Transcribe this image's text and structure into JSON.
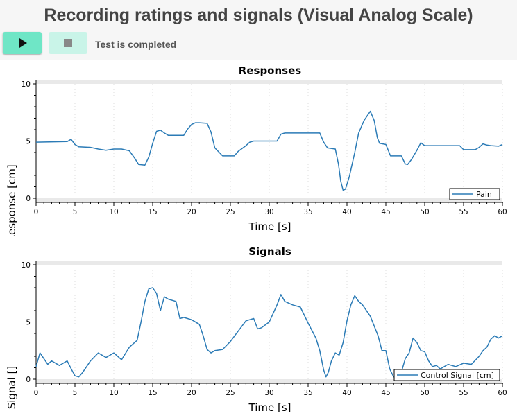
{
  "header": {
    "title": "Recording ratings and signals (Visual Analog Scale)",
    "status": "Test is completed"
  },
  "toolbar": {
    "play_icon": "play-icon",
    "stop_icon": "stop-icon"
  },
  "colors": {
    "series": "#2b7bb6",
    "play_button": "#6fe6c6",
    "stop_button": "#c9f4e8",
    "band": "#e9e9e9"
  },
  "chart_data": [
    {
      "type": "line",
      "title": "Responses",
      "xlabel": "Time [s]",
      "ylabel": "Response [cm]",
      "xlim": [
        0,
        60
      ],
      "ylim": [
        0,
        10
      ],
      "xticks": [
        "0",
        "5",
        "10",
        "15",
        "20",
        "25",
        "30",
        "35",
        "40",
        "45",
        "50",
        "55",
        "60"
      ],
      "yticks": [
        "0",
        "5",
        "10"
      ],
      "legend": "bottom-right",
      "series": [
        {
          "name": "Pain",
          "points": [
            [
              0,
              4.9
            ],
            [
              4,
              4.95
            ],
            [
              4.5,
              5.15
            ],
            [
              5,
              4.7
            ],
            [
              5.5,
              4.5
            ],
            [
              7,
              4.45
            ],
            [
              8,
              4.3
            ],
            [
              9,
              4.2
            ],
            [
              10,
              4.3
            ],
            [
              11,
              4.3
            ],
            [
              12,
              4.15
            ],
            [
              12.7,
              3.5
            ],
            [
              13.2,
              2.95
            ],
            [
              14,
              2.9
            ],
            [
              14.5,
              3.6
            ],
            [
              15,
              4.8
            ],
            [
              15.5,
              5.85
            ],
            [
              16,
              5.95
            ],
            [
              16.5,
              5.7
            ],
            [
              17,
              5.5
            ],
            [
              19,
              5.5
            ],
            [
              19.5,
              6.05
            ],
            [
              20,
              6.45
            ],
            [
              20.5,
              6.6
            ],
            [
              21,
              6.6
            ],
            [
              22,
              6.55
            ],
            [
              22.5,
              5.8
            ],
            [
              23,
              4.4
            ],
            [
              24,
              3.7
            ],
            [
              25.5,
              3.7
            ],
            [
              26,
              4.1
            ],
            [
              27,
              4.6
            ],
            [
              27.5,
              4.9
            ],
            [
              28,
              5.0
            ],
            [
              31,
              5.0
            ],
            [
              31.5,
              5.6
            ],
            [
              32,
              5.7
            ],
            [
              36.5,
              5.7
            ],
            [
              37,
              4.9
            ],
            [
              37.5,
              4.4
            ],
            [
              38.5,
              4.3
            ],
            [
              38.9,
              3.0
            ],
            [
              39.2,
              1.5
            ],
            [
              39.5,
              0.7
            ],
            [
              39.8,
              0.8
            ],
            [
              40.3,
              1.9
            ],
            [
              41,
              4.0
            ],
            [
              41.5,
              5.7
            ],
            [
              42.2,
              6.8
            ],
            [
              43,
              7.6
            ],
            [
              43.5,
              6.8
            ],
            [
              43.9,
              5.3
            ],
            [
              44.2,
              4.8
            ],
            [
              45,
              4.7
            ],
            [
              45.3,
              4.2
            ],
            [
              45.6,
              3.7
            ],
            [
              47,
              3.7
            ],
            [
              47.5,
              3.0
            ],
            [
              47.8,
              2.95
            ],
            [
              48.3,
              3.4
            ],
            [
              49,
              4.2
            ],
            [
              49.5,
              4.85
            ],
            [
              50,
              4.6
            ],
            [
              54.5,
              4.6
            ],
            [
              55,
              4.25
            ],
            [
              56.5,
              4.25
            ],
            [
              57,
              4.45
            ],
            [
              57.5,
              4.75
            ],
            [
              58,
              4.65
            ],
            [
              58.5,
              4.6
            ],
            [
              59.5,
              4.55
            ],
            [
              60,
              4.7
            ]
          ]
        }
      ]
    },
    {
      "type": "line",
      "title": "Signals",
      "xlabel": "Time [s]",
      "ylabel": "Signal []",
      "xlim": [
        0,
        60
      ],
      "ylim": [
        0,
        10
      ],
      "xticks": [
        "0",
        "5",
        "10",
        "15",
        "20",
        "25",
        "30",
        "35",
        "40",
        "45",
        "50",
        "55",
        "60"
      ],
      "yticks": [
        "0",
        "5",
        "10"
      ],
      "legend": "bottom-right",
      "series": [
        {
          "name": "Control Signal [cm]",
          "points": [
            [
              0,
              1.1
            ],
            [
              0.5,
              2.3
            ],
            [
              1,
              1.8
            ],
            [
              1.5,
              1.3
            ],
            [
              2,
              1.6
            ],
            [
              3,
              1.2
            ],
            [
              4,
              1.6
            ],
            [
              4.6,
              0.8
            ],
            [
              5,
              0.3
            ],
            [
              5.5,
              0.2
            ],
            [
              6,
              0.6
            ],
            [
              7,
              1.6
            ],
            [
              8,
              2.3
            ],
            [
              9,
              1.9
            ],
            [
              10,
              2.3
            ],
            [
              11,
              1.7
            ],
            [
              12,
              2.8
            ],
            [
              13,
              3.4
            ],
            [
              13.5,
              5.0
            ],
            [
              14,
              6.8
            ],
            [
              14.5,
              7.9
            ],
            [
              15,
              8.0
            ],
            [
              15.5,
              7.5
            ],
            [
              16,
              6.0
            ],
            [
              16.5,
              7.2
            ],
            [
              17,
              7.0
            ],
            [
              18,
              6.8
            ],
            [
              18.5,
              5.3
            ],
            [
              19,
              5.4
            ],
            [
              20,
              5.2
            ],
            [
              21,
              4.8
            ],
            [
              21.5,
              3.8
            ],
            [
              22,
              2.6
            ],
            [
              22.5,
              2.3
            ],
            [
              23,
              2.5
            ],
            [
              24,
              2.6
            ],
            [
              25,
              3.3
            ],
            [
              26,
              4.2
            ],
            [
              27,
              5.1
            ],
            [
              28,
              5.3
            ],
            [
              28.5,
              4.4
            ],
            [
              29,
              4.5
            ],
            [
              30,
              5.0
            ],
            [
              31,
              6.5
            ],
            [
              31.5,
              7.4
            ],
            [
              32,
              6.8
            ],
            [
              33,
              6.5
            ],
            [
              34,
              6.3
            ],
            [
              35,
              4.9
            ],
            [
              36,
              3.6
            ],
            [
              36.5,
              2.5
            ],
            [
              37,
              0.8
            ],
            [
              37.3,
              0.2
            ],
            [
              37.6,
              0.6
            ],
            [
              38,
              1.6
            ],
            [
              38.5,
              2.3
            ],
            [
              39,
              2.1
            ],
            [
              39.5,
              3.2
            ],
            [
              40,
              5.1
            ],
            [
              40.5,
              6.5
            ],
            [
              41,
              7.3
            ],
            [
              41.5,
              6.8
            ],
            [
              42,
              6.5
            ],
            [
              43,
              5.5
            ],
            [
              44,
              3.8
            ],
            [
              44.5,
              2.5
            ],
            [
              45,
              2.5
            ],
            [
              45.5,
              0.9
            ],
            [
              46,
              0.2
            ],
            [
              46.5,
              0.4
            ],
            [
              47,
              0.6
            ],
            [
              47.5,
              1.8
            ],
            [
              48,
              2.3
            ],
            [
              48.5,
              3.6
            ],
            [
              49,
              3.2
            ],
            [
              49.5,
              2.5
            ],
            [
              50,
              2.4
            ],
            [
              50.5,
              1.6
            ],
            [
              51,
              1.1
            ],
            [
              51.5,
              1.2
            ],
            [
              52,
              0.9
            ],
            [
              53,
              1.3
            ],
            [
              54,
              1.1
            ],
            [
              55,
              1.4
            ],
            [
              56,
              1.3
            ],
            [
              57,
              2.0
            ],
            [
              57.5,
              2.5
            ],
            [
              58,
              2.8
            ],
            [
              58.5,
              3.5
            ],
            [
              59,
              3.8
            ],
            [
              59.5,
              3.6
            ],
            [
              60,
              3.8
            ]
          ]
        }
      ]
    }
  ]
}
